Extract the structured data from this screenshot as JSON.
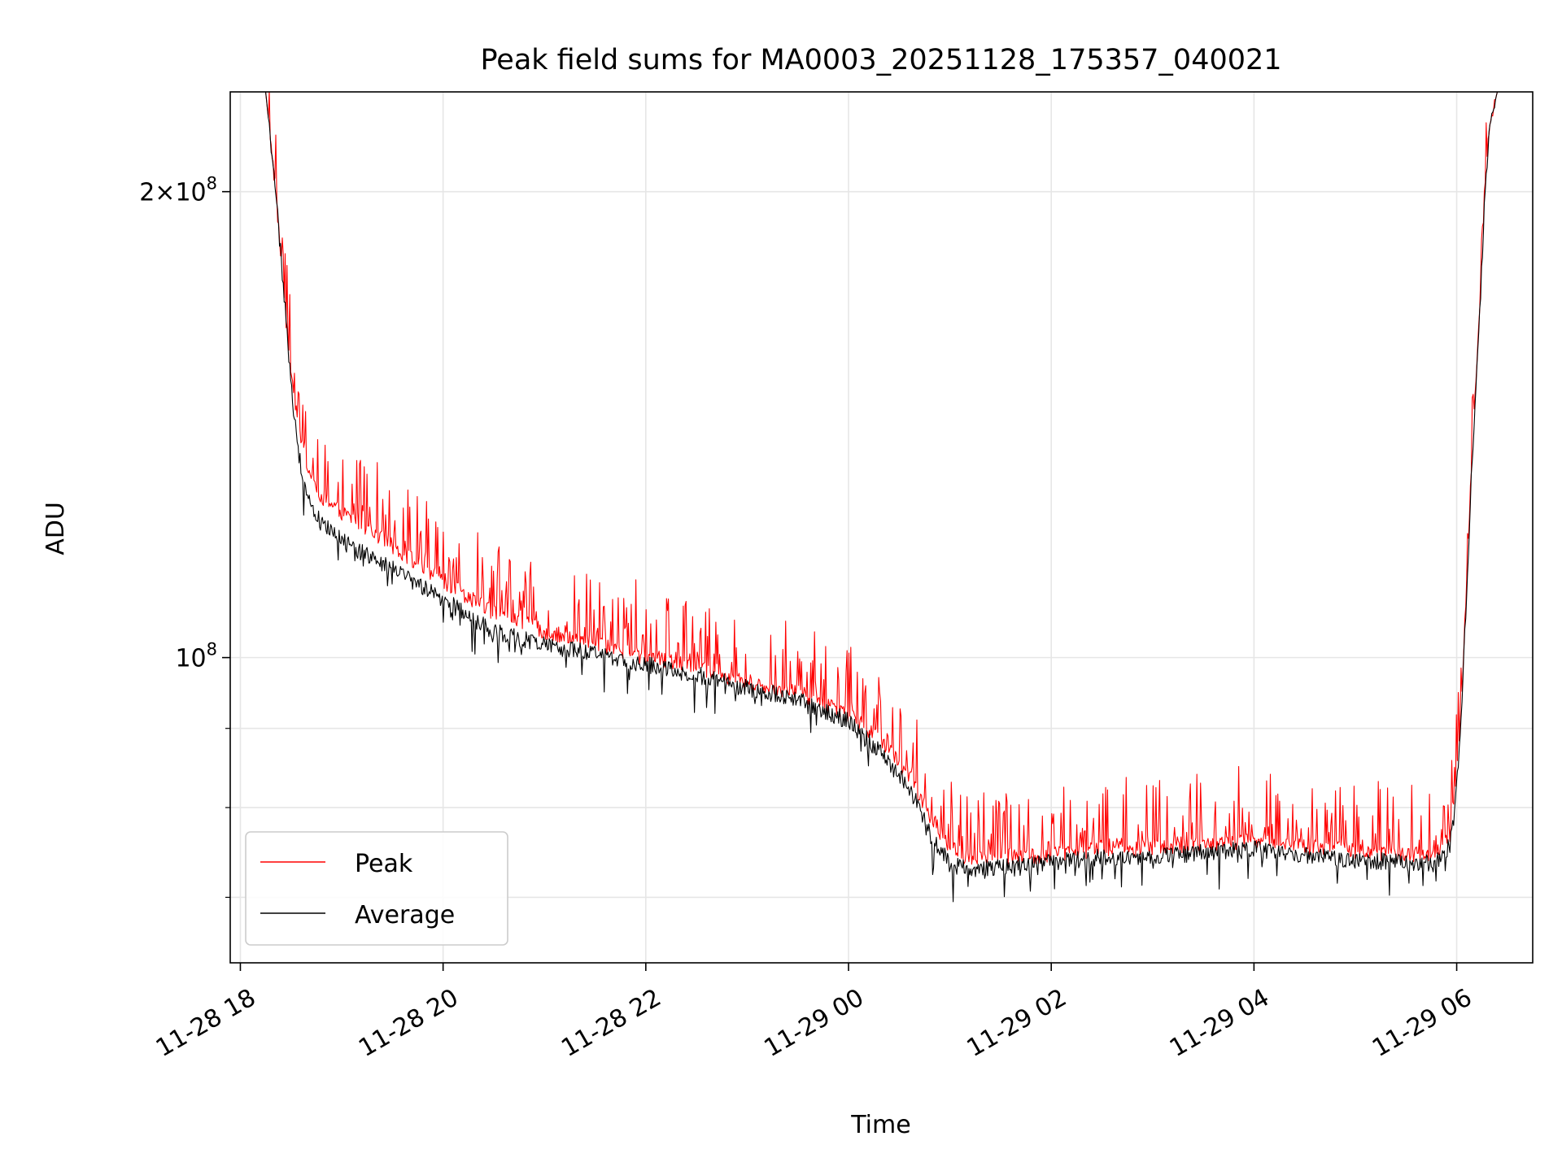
{
  "chart_data": {
    "type": "line",
    "title": "Peak field sums for MA0003_20251128_175357_040021",
    "xlabel": "Time",
    "ylabel": "ADU",
    "yscale": "log",
    "x_unit": "hours since 11-28 18:00",
    "xlim": [
      -0.1,
      12.75
    ],
    "ylim": [
      63500000,
      232000000
    ],
    "xticks": [
      {
        "value": 0,
        "label": "11-28 18"
      },
      {
        "value": 2,
        "label": "11-28 20"
      },
      {
        "value": 4,
        "label": "11-28 22"
      },
      {
        "value": 6,
        "label": "11-29 00"
      },
      {
        "value": 8,
        "label": "11-29 02"
      },
      {
        "value": 10,
        "label": "11-29 04"
      },
      {
        "value": 12,
        "label": "11-29 06"
      }
    ],
    "yticks_major": [
      {
        "value": 100000000,
        "base": "10",
        "exp": "8",
        "mult": ""
      },
      {
        "value": 200000000,
        "base": "10",
        "exp": "8",
        "mult": "2×"
      }
    ],
    "yticks_minor": [
      60000000,
      70000000,
      80000000,
      90000000
    ],
    "grid": true,
    "legend": {
      "location": "lower-left"
    },
    "series": [
      {
        "name": "Peak",
        "color": "#ff0000",
        "noise": 0.012,
        "spike_rate": 0.32,
        "spike_scale": 0.11,
        "baseline": {
          "x": [
            -0.1,
            0.25,
            0.35,
            0.45,
            0.5,
            0.55,
            0.6,
            0.7,
            0.8,
            1.0,
            1.2,
            1.5,
            2.0,
            2.5,
            3.0,
            3.5,
            4.0,
            4.5,
            5.0,
            5.5,
            6.0,
            6.3,
            6.6,
            6.8,
            7.0,
            7.2,
            7.5,
            8.0,
            8.5,
            9.0,
            9.5,
            10.0,
            10.5,
            11.0,
            11.5,
            11.8,
            11.93,
            12.0,
            12.05,
            12.1,
            12.15,
            12.22,
            12.28,
            12.32,
            12.4,
            12.75
          ],
          "y": [
            232000000,
            232000000,
            200000000,
            165000000,
            153000000,
            145000000,
            138000000,
            131000000,
            127000000,
            124000000,
            122000000,
            118000000,
            112000000,
            107000000,
            104000000,
            102000000,
            100000000,
            98500000,
            96500000,
            95000000,
            92000000,
            88500000,
            84000000,
            79000000,
            75500000,
            74000000,
            74200000,
            74500000,
            75200000,
            75400000,
            75800000,
            76200000,
            75500000,
            75000000,
            74700000,
            74700000,
            76500000,
            84000000,
            95000000,
            113000000,
            135000000,
            165000000,
            200000000,
            220000000,
            232000000,
            232000000
          ]
        }
      },
      {
        "name": "Average",
        "color": "#000000",
        "noise": 0.013,
        "spike_rate": 0.1,
        "spike_scale": -0.05,
        "baseline": {
          "x": [
            -0.1,
            0.25,
            0.35,
            0.45,
            0.5,
            0.55,
            0.6,
            0.7,
            0.8,
            1.0,
            1.2,
            1.5,
            2.0,
            2.5,
            3.0,
            3.5,
            4.0,
            4.5,
            5.0,
            5.5,
            6.0,
            6.3,
            6.6,
            6.8,
            7.0,
            7.2,
            7.5,
            8.0,
            8.5,
            9.0,
            9.5,
            10.0,
            10.5,
            11.0,
            11.5,
            11.8,
            11.93,
            12.0,
            12.05,
            12.1,
            12.15,
            12.22,
            12.28,
            12.32,
            12.4,
            12.75
          ],
          "y": [
            232000000,
            232000000,
            200000000,
            165000000,
            150000000,
            140000000,
            132000000,
            126000000,
            122000000,
            119000000,
            117000000,
            114000000,
            109000000,
            104000000,
            102000000,
            100500000,
            99000000,
            97500000,
            95500000,
            94000000,
            91000000,
            87000000,
            82500000,
            77000000,
            73500000,
            73000000,
            73300000,
            73700000,
            74300000,
            74500000,
            74800000,
            75200000,
            74500000,
            74000000,
            73700000,
            73700000,
            75500000,
            83000000,
            93000000,
            111000000,
            133000000,
            163000000,
            200000000,
            220000000,
            232000000,
            232000000
          ]
        }
      }
    ]
  }
}
